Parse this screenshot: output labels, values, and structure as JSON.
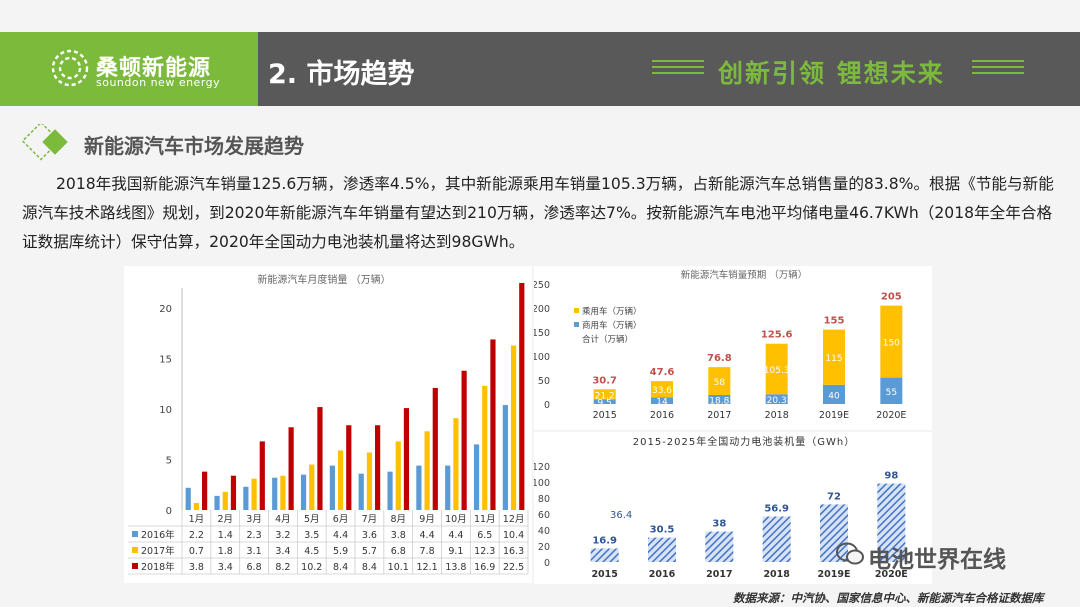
{
  "header": {
    "logo_cn": "桑顿新能源",
    "logo_en": "soundon new energy",
    "section_title": "2. 市场趋势",
    "slogan": "创新引领  锂想未来"
  },
  "subheading": "新能源汽车市场发展趋势",
  "paragraph": "2018年我国新能源汽车销量125.6万辆，渗透率4.5%，其中新能源乘用车销量105.3万辆，占新能源汽车总销售量的83.8%。根据《节能与新能源汽车技术路线图》规划，到2020年新能源汽车年销量有望达到210万辆，渗透率达7%。按新能源汽车电池平均储电量46.7KWh（2018年全年合格证数据库统计）保守估算，2020年全国动力电池装机量将达到98GWh。",
  "watermark": "电池世界在线",
  "source": "数据来源：中汽协、国家信息中心、新能源汽车合格证数据库",
  "colors": {
    "green": "#7cba3c",
    "dark": "#595959",
    "blue": "#5b9bd5",
    "yellow": "#ffc000",
    "red": "#c00000",
    "hatch": "#4472c4"
  },
  "chart_data": [
    {
      "type": "bar",
      "title": "新能源汽车月度销量  （万辆）",
      "ylim": [
        0,
        22
      ],
      "yticks": [
        0,
        5,
        10,
        15,
        20
      ],
      "categories": [
        "1月",
        "2月",
        "3月",
        "4月",
        "5月",
        "6月",
        "7月",
        "8月",
        "9月",
        "10月",
        "11月",
        "12月"
      ],
      "series": [
        {
          "name": "2016年",
          "color": "#5b9bd5",
          "values": [
            2.2,
            1.4,
            2.3,
            3.2,
            3.5,
            4.4,
            3.6,
            3.8,
            4.4,
            4.4,
            6.5,
            10.4
          ]
        },
        {
          "name": "2017年",
          "color": "#ffc000",
          "values": [
            0.7,
            1.8,
            3.1,
            3.4,
            4.5,
            5.9,
            5.7,
            6.8,
            7.8,
            9.1,
            12.3,
            16.3
          ]
        },
        {
          "name": "2018年",
          "color": "#c00000",
          "values": [
            3.8,
            3.4,
            6.8,
            8.2,
            10.2,
            8.4,
            8.4,
            10.1,
            12.1,
            13.8,
            16.9,
            22.5
          ]
        }
      ]
    },
    {
      "type": "bar",
      "stacked": true,
      "title": "新能源汽车销量预期  （万辆）",
      "ylim": [
        0,
        250
      ],
      "yticks": [
        0,
        50,
        100,
        150,
        200,
        250
      ],
      "categories": [
        "2015",
        "2016",
        "2017",
        "2018",
        "2019E",
        "2020E"
      ],
      "series": [
        {
          "name": "商用车（万辆）",
          "color": "#5b9bd5",
          "values": [
            9.5,
            14,
            18.8,
            20.3,
            40,
            55
          ]
        },
        {
          "name": "乘用车（万辆）",
          "color": "#ffc000",
          "values": [
            21.2,
            33.6,
            58,
            105.3,
            115,
            150
          ]
        }
      ],
      "totals_label": "合计（万辆）",
      "totals": [
        30.7,
        47.6,
        76.8,
        125.6,
        155,
        205
      ]
    },
    {
      "type": "bar",
      "title": "2015-2025年全国动力电池装机量（GWh）",
      "ylim": [
        0,
        120
      ],
      "yticks": [
        0,
        20,
        40,
        60,
        80,
        100,
        120
      ],
      "categories": [
        "2015",
        "2016",
        "2017",
        "2018",
        "2019E",
        "2020E"
      ],
      "values": [
        16.9,
        30.5,
        38,
        56.9,
        72,
        98
      ],
      "extra_label": "36.4"
    }
  ]
}
